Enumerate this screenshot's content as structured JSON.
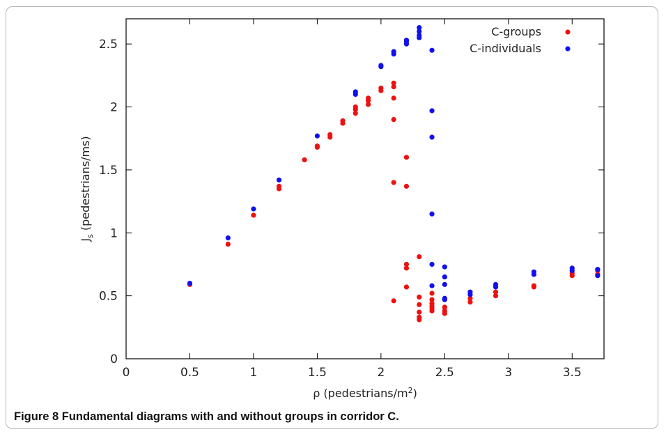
{
  "figure": {
    "caption": "Figure 8 Fundamental diagrams with and without groups in corridor C."
  },
  "chart_data": {
    "type": "scatter",
    "xlabel": "ρ (pedestrians/m",
    "xlabel_sup": "2",
    "xlabel_close": ")",
    "ylabel": "J",
    "ylabel_sub": "s",
    "ylabel_rest": " (pedestrians/ms)",
    "xlim": [
      0,
      3.75
    ],
    "ylim": [
      0,
      2.7
    ],
    "xticks": [
      0,
      0.5,
      1,
      1.5,
      2,
      2.5,
      3,
      3.5
    ],
    "xtick_labels": [
      "0",
      "0.5",
      "1",
      "1.5",
      "2",
      "2.5",
      "3",
      "3.5"
    ],
    "yticks": [
      0,
      0.5,
      1,
      1.5,
      2,
      2.5
    ],
    "ytick_labels": [
      "0",
      "0.5",
      "1",
      "1.5",
      "2",
      "2.5"
    ],
    "grid": false,
    "legend_position": "top-right",
    "series": [
      {
        "name": "C-groups",
        "color": "#ee1111",
        "points": [
          [
            0.5,
            0.59
          ],
          [
            0.8,
            0.91
          ],
          [
            1.0,
            1.14
          ],
          [
            1.2,
            1.35
          ],
          [
            1.2,
            1.37
          ],
          [
            1.4,
            1.58
          ],
          [
            1.5,
            1.68
          ],
          [
            1.5,
            1.69
          ],
          [
            1.6,
            1.76
          ],
          [
            1.6,
            1.78
          ],
          [
            1.7,
            1.87
          ],
          [
            1.7,
            1.89
          ],
          [
            1.8,
            1.95
          ],
          [
            1.8,
            1.98
          ],
          [
            1.8,
            2.0
          ],
          [
            1.9,
            2.02
          ],
          [
            1.9,
            2.05
          ],
          [
            1.9,
            2.07
          ],
          [
            2.0,
            2.13
          ],
          [
            2.0,
            2.15
          ],
          [
            2.1,
            2.07
          ],
          [
            2.1,
            2.16
          ],
          [
            2.1,
            2.19
          ],
          [
            2.1,
            1.9
          ],
          [
            2.1,
            1.4
          ],
          [
            2.1,
            0.46
          ],
          [
            2.2,
            1.6
          ],
          [
            2.2,
            1.37
          ],
          [
            2.2,
            0.75
          ],
          [
            2.2,
            0.72
          ],
          [
            2.2,
            0.57
          ],
          [
            2.3,
            0.81
          ],
          [
            2.3,
            0.49
          ],
          [
            2.3,
            0.43
          ],
          [
            2.3,
            0.37
          ],
          [
            2.3,
            0.33
          ],
          [
            2.3,
            0.31
          ],
          [
            2.4,
            0.52
          ],
          [
            2.4,
            0.47
          ],
          [
            2.4,
            0.44
          ],
          [
            2.4,
            0.42
          ],
          [
            2.4,
            0.4
          ],
          [
            2.4,
            0.38
          ],
          [
            2.5,
            0.47
          ],
          [
            2.5,
            0.41
          ],
          [
            2.5,
            0.38
          ],
          [
            2.5,
            0.36
          ],
          [
            2.7,
            0.48
          ],
          [
            2.7,
            0.45
          ],
          [
            2.9,
            0.53
          ],
          [
            2.9,
            0.5
          ],
          [
            3.2,
            0.58
          ],
          [
            3.2,
            0.57
          ],
          [
            3.5,
            0.68
          ],
          [
            3.5,
            0.66
          ],
          [
            3.7,
            0.7
          ],
          [
            3.7,
            0.67
          ]
        ]
      },
      {
        "name": "C-individuals",
        "color": "#1111ee",
        "points": [
          [
            0.5,
            0.6
          ],
          [
            0.8,
            0.96
          ],
          [
            1.0,
            1.19
          ],
          [
            1.2,
            1.42
          ],
          [
            1.5,
            1.77
          ],
          [
            1.8,
            2.1
          ],
          [
            1.8,
            2.12
          ],
          [
            2.0,
            2.32
          ],
          [
            2.0,
            2.33
          ],
          [
            2.1,
            2.42
          ],
          [
            2.1,
            2.44
          ],
          [
            2.2,
            2.5
          ],
          [
            2.2,
            2.52
          ],
          [
            2.2,
            2.53
          ],
          [
            2.3,
            2.55
          ],
          [
            2.3,
            2.57
          ],
          [
            2.3,
            2.6
          ],
          [
            2.3,
            2.63
          ],
          [
            2.4,
            2.45
          ],
          [
            2.4,
            1.97
          ],
          [
            2.4,
            1.76
          ],
          [
            2.4,
            1.15
          ],
          [
            2.4,
            0.75
          ],
          [
            2.4,
            0.58
          ],
          [
            2.5,
            0.73
          ],
          [
            2.5,
            0.65
          ],
          [
            2.5,
            0.59
          ],
          [
            2.5,
            0.48
          ],
          [
            2.5,
            0.47
          ],
          [
            2.7,
            0.53
          ],
          [
            2.7,
            0.51
          ],
          [
            2.9,
            0.59
          ],
          [
            2.9,
            0.57
          ],
          [
            3.2,
            0.69
          ],
          [
            3.2,
            0.67
          ],
          [
            3.5,
            0.72
          ],
          [
            3.5,
            0.7
          ],
          [
            3.7,
            0.71
          ],
          [
            3.7,
            0.66
          ]
        ]
      }
    ]
  }
}
